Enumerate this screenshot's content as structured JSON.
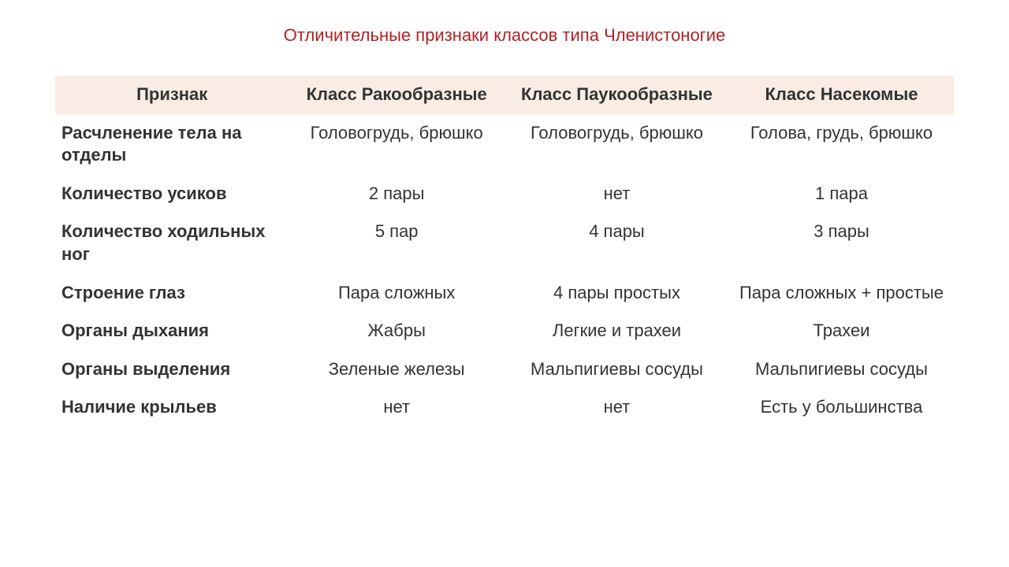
{
  "title": "Отличительные признаки классов типа Членистоногие",
  "table": {
    "type": "table",
    "header_bg": "#f8ece5",
    "title_color": "#b22222",
    "text_color": "#333333",
    "font_size_pt": 17,
    "columns": [
      "Признак",
      "Класс Ракообразные",
      "Класс Паукообразные",
      "Класс Насекомые"
    ],
    "rows": [
      {
        "feature": "Расчленение тела на отделы",
        "c1": "Головогрудь, брюшко",
        "c2": "Головогрудь, брюшко",
        "c3": "Голова, грудь, брюшко"
      },
      {
        "feature": "Количество усиков",
        "c1": "2 пары",
        "c2": "нет",
        "c3": "1 пара"
      },
      {
        "feature": "Количество ходильных ног",
        "c1": "5 пар",
        "c2": "4 пары",
        "c3": "3 пары"
      },
      {
        "feature": "Строение глаз",
        "c1": "Пара сложных",
        "c2": "4 пары простых",
        "c3": "Пара сложных + простые"
      },
      {
        "feature": "Органы дыхания",
        "c1": "Жабры",
        "c2": "Легкие и трахеи",
        "c3": "Трахеи"
      },
      {
        "feature": "Органы выделения",
        "c1": "Зеленые железы",
        "c2": "Мальпигиевы сосуды",
        "c3": "Мальпигиевы сосуды"
      },
      {
        "feature": "Наличие крыльев",
        "c1": "нет",
        "c2": "нет",
        "c3": "Есть у большинства"
      }
    ]
  }
}
